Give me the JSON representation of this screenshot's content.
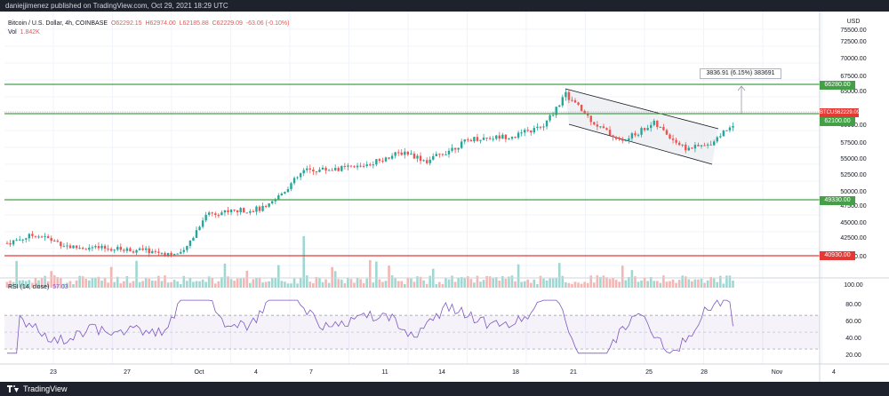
{
  "header": {
    "published_text": "daniejjimenez published on TradingView.com, Oct 29, 2021 18:29 UTC"
  },
  "legend": {
    "symbol": "Bitcoin / U.S. Dollar, 4h, COINBASE",
    "open": "O62292.15",
    "high": "H62974.00",
    "low": "L62185.88",
    "close": "C62229.09",
    "change": "-63.06 (-0.10%)",
    "volume_label": "Vol",
    "volume_value": "1.842K",
    "rsi_label": "RSI (14, close)",
    "rsi_value": "57.03"
  },
  "price_axis": {
    "currency": "USD",
    "labels": [
      "75500.00",
      "72500.00",
      "70000.00",
      "67500.00",
      "65000.00",
      "60000.00",
      "57500.00",
      "55000.00",
      "52500.00",
      "50000.00",
      "47500.00",
      "45000.00",
      "42500.00",
      "40000.00"
    ]
  },
  "level_tags": [
    {
      "text": "66280.00",
      "color": "#43a047"
    },
    {
      "text": "62100.00",
      "color": "#43a047"
    },
    {
      "text": "49330.00",
      "color": "#43a047"
    },
    {
      "text": "40930.00",
      "color": "#e53935"
    }
  ],
  "symbol_tag": {
    "name": "BTCUSD",
    "price": "62229.09"
  },
  "rsi_axis": {
    "labels": [
      "100.00",
      "80.00",
      "60.00",
      "40.00",
      "20.00"
    ]
  },
  "time_axis": {
    "labels": [
      "23",
      "27",
      "Oct",
      "4",
      "7",
      "11",
      "14",
      "18",
      "21",
      "25",
      "28",
      "Nov",
      "4"
    ]
  },
  "measure_label": "3836.91 (6.15%) 383691",
  "footer": {
    "brand": "TradingView"
  },
  "colors": {
    "up": "#26a69a",
    "down": "#ef5350",
    "support": "#43a047",
    "resistance_red": "#e53935",
    "rsi_line": "#7e57c2"
  },
  "chart_data": {
    "type": "candlestick",
    "symbol": "BTCUSD",
    "interval": "4h",
    "levels": [
      66280,
      62100,
      49330,
      40930
    ],
    "last_price": 62229.09,
    "key_points": [
      {
        "x": "Sep 20",
        "price": 42800
      },
      {
        "x": "Sep 29",
        "price": 41500
      },
      {
        "x": "Oct 1",
        "price": 47800
      },
      {
        "x": "Oct 6",
        "price": 54500
      },
      {
        "x": "Oct 15",
        "price": 59500
      },
      {
        "x": "Oct 20",
        "price": 66500
      },
      {
        "x": "Oct 21",
        "price": 61800
      },
      {
        "x": "Oct 27",
        "price": 58000
      },
      {
        "x": "Oct 29",
        "price": 62229
      }
    ],
    "rsi": {
      "period": 14,
      "last": 57.03,
      "upper_band": 70,
      "lower_band": 30,
      "ylim": [
        10,
        105
      ]
    }
  }
}
